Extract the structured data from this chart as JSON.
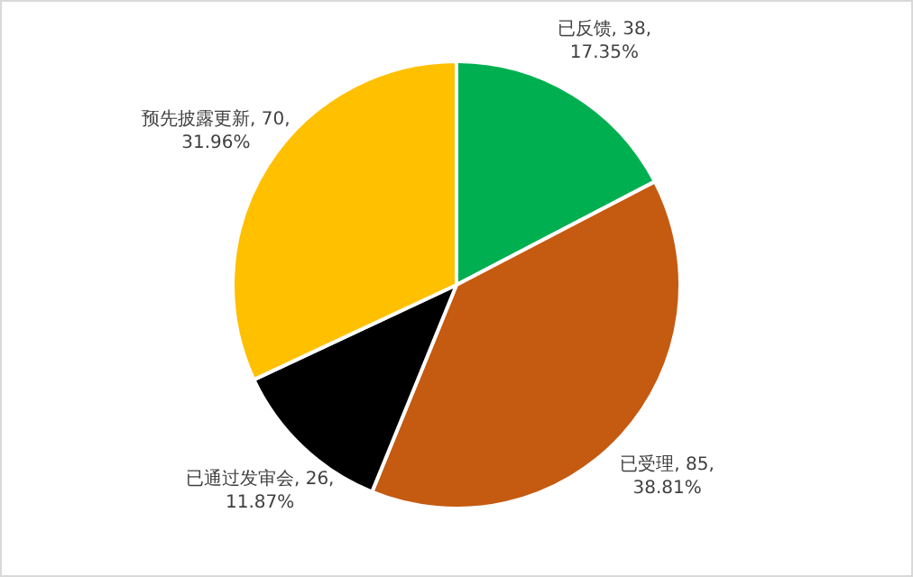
{
  "chart_data": {
    "type": "pie",
    "categories": [
      "已反馈",
      "已受理",
      "已通过发审会",
      "预先披露更新"
    ],
    "values": [
      38,
      85,
      26,
      70
    ],
    "colors": [
      "#00b050",
      "#c55a11",
      "#000000",
      "#ffc000"
    ],
    "value_labels": [
      "38, 17.35%",
      "85, 38.81%",
      "26, 11.87%",
      "70, 31.96%"
    ]
  }
}
